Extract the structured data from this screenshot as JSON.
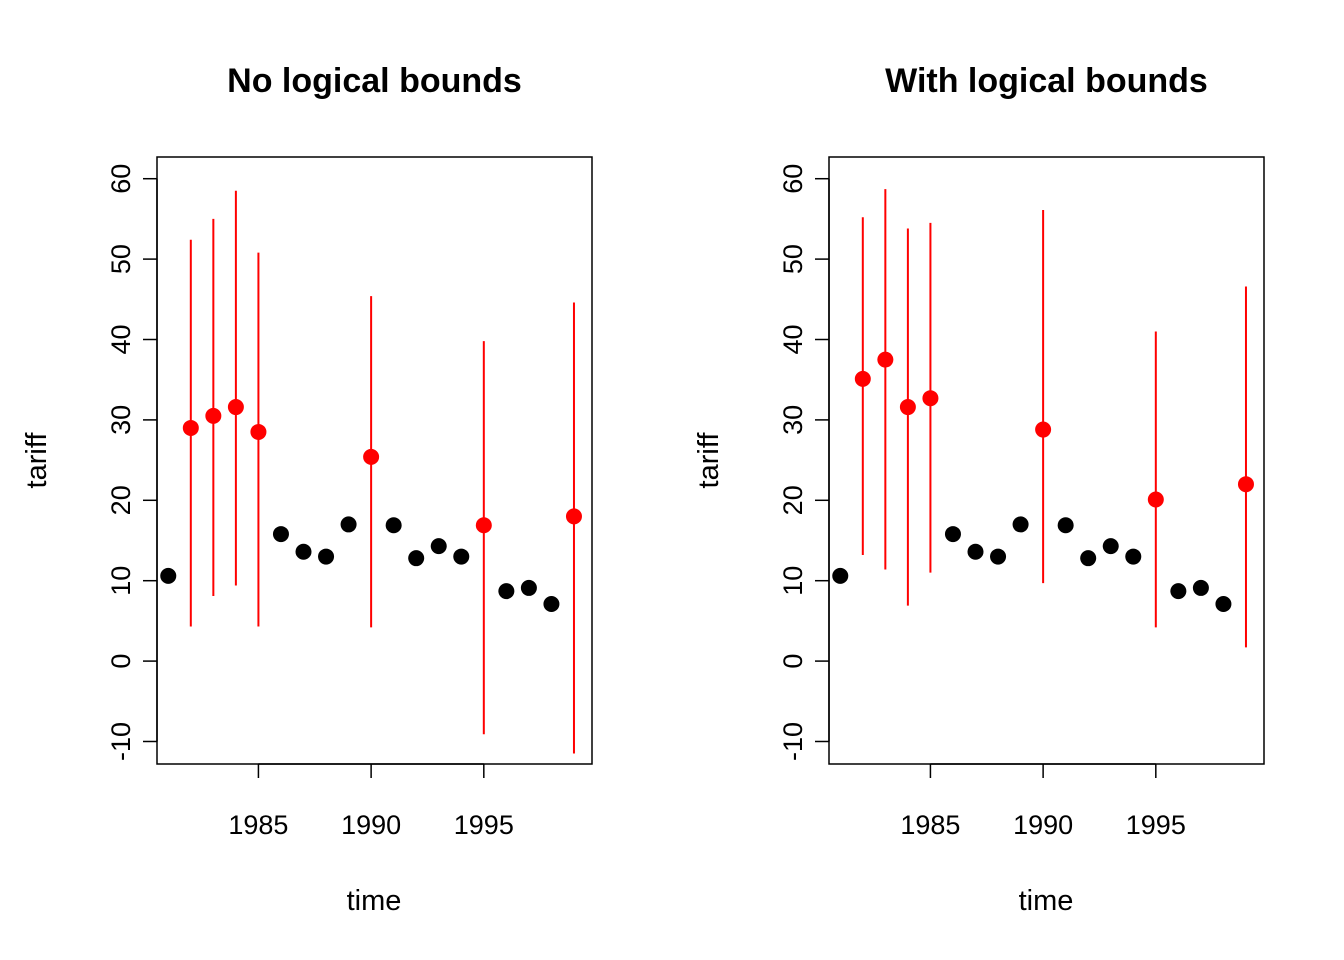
{
  "colors": {
    "observed": "#000000",
    "imputed": "#ff0000",
    "axis": "#000000",
    "background": "#ffffff"
  },
  "chart_data": [
    {
      "type": "scatter",
      "title": "No logical bounds",
      "xlabel": "time",
      "ylabel": "tariff",
      "x_ticks": [
        1985,
        1990,
        1995
      ],
      "y_ticks": [
        -10,
        0,
        10,
        20,
        30,
        40,
        50,
        60
      ],
      "xlim": [
        1980.5,
        1999.8
      ],
      "ylim": [
        -12.8,
        62.7
      ],
      "grid": false,
      "series": [
        {
          "role": "observed",
          "points": [
            {
              "x": 1981,
              "y": 10.6
            },
            {
              "x": 1986,
              "y": 15.8
            },
            {
              "x": 1987,
              "y": 13.6
            },
            {
              "x": 1988,
              "y": 13.0
            },
            {
              "x": 1989,
              "y": 17.0
            },
            {
              "x": 1991,
              "y": 16.9
            },
            {
              "x": 1992,
              "y": 12.8
            },
            {
              "x": 1993,
              "y": 14.3
            },
            {
              "x": 1994,
              "y": 13.0
            },
            {
              "x": 1996,
              "y": 8.7
            },
            {
              "x": 1997,
              "y": 9.1
            },
            {
              "x": 1998,
              "y": 7.1
            }
          ]
        },
        {
          "role": "imputed",
          "points": [
            {
              "x": 1982,
              "y": 29.0,
              "lo": 4.3,
              "hi": 52.4
            },
            {
              "x": 1983,
              "y": 30.5,
              "lo": 8.1,
              "hi": 55.0
            },
            {
              "x": 1984,
              "y": 31.6,
              "lo": 9.4,
              "hi": 58.5
            },
            {
              "x": 1985,
              "y": 28.5,
              "lo": 4.3,
              "hi": 50.8
            },
            {
              "x": 1990,
              "y": 25.4,
              "lo": 4.2,
              "hi": 45.4
            },
            {
              "x": 1995,
              "y": 16.9,
              "lo": -9.1,
              "hi": 39.8
            },
            {
              "x": 1999,
              "y": 18.0,
              "lo": -11.5,
              "hi": 44.6
            }
          ]
        }
      ]
    },
    {
      "type": "scatter",
      "title": "With logical bounds",
      "xlabel": "time",
      "ylabel": "tariff",
      "x_ticks": [
        1985,
        1990,
        1995
      ],
      "y_ticks": [
        -10,
        0,
        10,
        20,
        30,
        40,
        50,
        60
      ],
      "xlim": [
        1980.5,
        1999.8
      ],
      "ylim": [
        -12.8,
        62.7
      ],
      "grid": false,
      "series": [
        {
          "role": "observed",
          "points": [
            {
              "x": 1981,
              "y": 10.6
            },
            {
              "x": 1986,
              "y": 15.8
            },
            {
              "x": 1987,
              "y": 13.6
            },
            {
              "x": 1988,
              "y": 13.0
            },
            {
              "x": 1989,
              "y": 17.0
            },
            {
              "x": 1991,
              "y": 16.9
            },
            {
              "x": 1992,
              "y": 12.8
            },
            {
              "x": 1993,
              "y": 14.3
            },
            {
              "x": 1994,
              "y": 13.0
            },
            {
              "x": 1996,
              "y": 8.7
            },
            {
              "x": 1997,
              "y": 9.1
            },
            {
              "x": 1998,
              "y": 7.1
            }
          ]
        },
        {
          "role": "imputed",
          "points": [
            {
              "x": 1982,
              "y": 35.1,
              "lo": 13.2,
              "hi": 55.2
            },
            {
              "x": 1983,
              "y": 37.5,
              "lo": 11.4,
              "hi": 58.7
            },
            {
              "x": 1984,
              "y": 31.6,
              "lo": 6.9,
              "hi": 53.8
            },
            {
              "x": 1985,
              "y": 32.7,
              "lo": 11.0,
              "hi": 54.5
            },
            {
              "x": 1990,
              "y": 28.8,
              "lo": 9.7,
              "hi": 56.1
            },
            {
              "x": 1995,
              "y": 20.1,
              "lo": 4.2,
              "hi": 41.0
            },
            {
              "x": 1999,
              "y": 22.0,
              "lo": 1.7,
              "hi": 46.6
            }
          ]
        }
      ]
    }
  ]
}
